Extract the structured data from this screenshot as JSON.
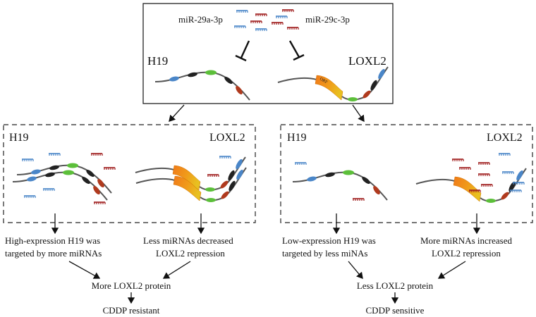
{
  "top": {
    "mirna_left": "miR-29a-3p",
    "mirna_right": "miR-29c-3p",
    "gene_left": "H19",
    "gene_right": "LOXL2",
    "orf_label": "ORF"
  },
  "left_panel": {
    "gene_left": "H19",
    "gene_right": "LOXL2",
    "text_left": [
      "High-expression H19 was",
      "targeted by more miRNAs"
    ],
    "text_right": [
      "Less miRNAs decreased",
      "LOXL2 repression"
    ],
    "result": "More LOXL2 protein",
    "outcome": "CDDP resistant"
  },
  "right_panel": {
    "gene_left": "H19",
    "gene_right": "LOXL2",
    "text_left": [
      "Low-expression H19 was",
      "targeted by less miNAs"
    ],
    "text_right": [
      "More miRNAs increased",
      "LOXL2 repression"
    ],
    "result": "Less LOXL2 protein",
    "outcome": "CDDP sensitive"
  },
  "colors": {
    "mirna_blue": "#4a86c8",
    "mirna_red": "#9e1b1b",
    "green": "#5cbf3a",
    "orange": "#f07a1a",
    "gold": "#e8b520"
  }
}
